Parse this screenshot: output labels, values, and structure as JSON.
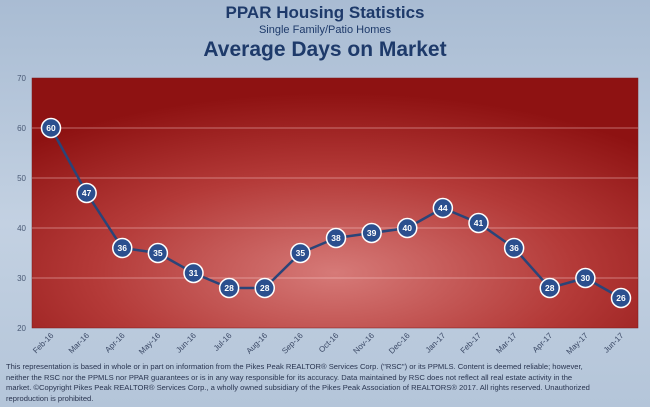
{
  "chart_data": {
    "type": "line",
    "title": "PPAR Housing Statistics",
    "subtitle": "Single Family/Patio Homes",
    "heading": "Average Days on Market",
    "categories": [
      "Feb-16",
      "Mar-16",
      "Apr-16",
      "May-16",
      "Jun-16",
      "Jul-16",
      "Aug-16",
      "Sep-16",
      "Oct-16",
      "Nov-16",
      "Dec-16",
      "Jan-17",
      "Feb-17",
      "Mar-17",
      "Apr-17",
      "May-17",
      "Jun-17"
    ],
    "values": [
      60,
      47,
      36,
      35,
      31,
      28,
      28,
      35,
      38,
      39,
      40,
      44,
      41,
      36,
      28,
      30,
      26
    ],
    "ylim": [
      20,
      70
    ],
    "yticks": [
      20,
      30,
      40,
      50,
      60,
      70
    ],
    "grid": true,
    "xlabel": "",
    "ylabel": ""
  },
  "colors": {
    "line": "#2a4478",
    "marker_fill": "#2b4f8e",
    "marker_stroke": "#ffffff",
    "plot_center": "#d67a78",
    "plot_edge": "#8e1212"
  },
  "footer": {
    "lines": [
      "This representation is based in whole or in part on information from the Pikes Peak REALTOR® Services Corp. (\"RSC\") or its PPMLS.  Content is deemed reliable; however,",
      "neither the RSC nor the PPMLS nor PPAR guarantees or is in any way responsible for its accuracy.  Data maintained by RSC does not reflect all real estate activity in the",
      "market.  ©Copyright Pikes Peak REALTOR® Services Corp., a wholly owned subsidiary of the Pikes Peak Association of REALTORS® 2017.  All rights reserved.  Unauthorized",
      "reproduction is prohibited."
    ]
  }
}
